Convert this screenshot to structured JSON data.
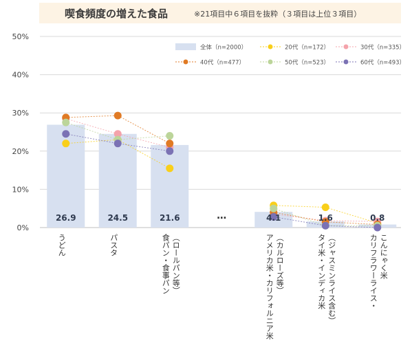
{
  "header": {
    "title": "喫食頻度の増えた食品",
    "note": "※21項目中６項目を抜粋（３項目は上位３項目）"
  },
  "colors": {
    "total_bar": "#d7e0f0",
    "20s": "#f9cf1a",
    "30s": "#f4a3ab",
    "40s": "#e07a24",
    "50s": "#bcd59a",
    "60s": "#7b72b4"
  },
  "chart_data": {
    "type": "bar",
    "categories": [
      "うどん",
      "パスタ",
      "食パン・食事パン（ロールパン等）",
      "…",
      "アメリカ米・カリフォルニア米（カルローズ等）",
      "タイ米・インディカ米（ジャスミンライス含む）",
      "カリフラワーライス・こんにゃく米"
    ],
    "category_lines": [
      [
        "うどん"
      ],
      [
        "パスタ"
      ],
      [
        "食パン・食事パン",
        "（ロールパン等）"
      ],
      [],
      [
        "アメリカ米・カリフォルニア米",
        "（カルローズ等）"
      ],
      [
        "タイ米・インディカ米",
        "（ジャスミンライス含む）"
      ],
      [
        "カリフラワーライス・",
        "こんにゃく米"
      ]
    ],
    "ylim": [
      0,
      50
    ],
    "yticks": [
      "0%",
      "10%",
      "20%",
      "30%",
      "40%",
      "50%"
    ],
    "grid": true,
    "legend_position": "top-right",
    "total_series": {
      "name": "全体（n=2000）",
      "values": [
        26.9,
        24.5,
        21.6,
        null,
        4.1,
        1.6,
        0.8
      ],
      "value_labels": [
        "26.9",
        "24.5",
        "21.6",
        "",
        "4.1",
        "1.6",
        "0.8"
      ]
    },
    "series": [
      {
        "key": "20s",
        "name": "20代（n=172）",
        "values": [
          22.0,
          23.0,
          15.5,
          null,
          5.8,
          5.3,
          1.2
        ]
      },
      {
        "key": "30s",
        "name": "30代（n=335）",
        "values": [
          28.5,
          24.5,
          21.0,
          null,
          3.5,
          1.8,
          1.6
        ]
      },
      {
        "key": "40s",
        "name": "40代（n=477）",
        "values": [
          28.8,
          29.3,
          22.0,
          null,
          4.0,
          1.5,
          0.8
        ]
      },
      {
        "key": "50s",
        "name": "50代（n=523）",
        "values": [
          27.5,
          23.0,
          24.0,
          null,
          5.0,
          0.5,
          0.5
        ]
      },
      {
        "key": "60s",
        "name": "60代（n=493）",
        "values": [
          24.5,
          22.0,
          20.0,
          null,
          2.8,
          0.5,
          0.0
        ]
      }
    ]
  }
}
